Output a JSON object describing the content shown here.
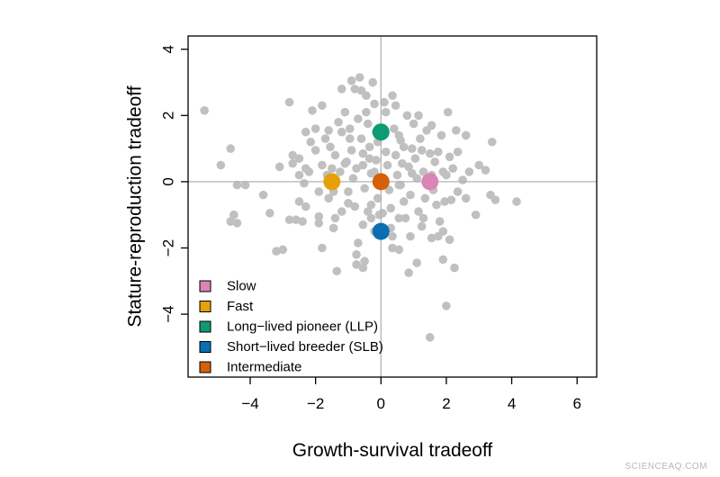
{
  "watermark": "SCIENCEAQ.COM",
  "chart_data": {
    "type": "scatter",
    "title": "",
    "xlabel": "Growth-survival tradeoff",
    "ylabel": "Stature-reproduction tradeoff",
    "xlim": [
      -5.9,
      6.6
    ],
    "ylim": [
      -5.9,
      4.4
    ],
    "xticks": [
      -4,
      -2,
      0,
      2,
      4,
      6
    ],
    "yticks": [
      -4,
      -2,
      0,
      2,
      4
    ],
    "xtick_labels": [
      "−4",
      "−2",
      "0",
      "2",
      "4",
      "6"
    ],
    "ytick_labels": [
      "−4",
      "−2",
      "0",
      "2",
      "4"
    ],
    "reference_lines": {
      "x": 0,
      "y": 0
    },
    "grid": false,
    "legend_position": "bottom-left",
    "background_points": {
      "color": "#c0c0c0",
      "points": [
        [
          -5.4,
          2.15
        ],
        [
          -4.6,
          1.0
        ],
        [
          -4.9,
          0.5
        ],
        [
          -4.4,
          -0.1
        ],
        [
          -4.15,
          -0.1
        ],
        [
          -4.5,
          -1.0
        ],
        [
          -4.6,
          -1.2
        ],
        [
          -4.4,
          -1.25
        ],
        [
          -3.6,
          -0.4
        ],
        [
          -3.4,
          -0.95
        ],
        [
          -3.2,
          -2.1
        ],
        [
          -3.0,
          -2.05
        ],
        [
          -2.8,
          -1.15
        ],
        [
          -2.6,
          -1.15
        ],
        [
          -2.7,
          0.8
        ],
        [
          -2.8,
          2.4
        ],
        [
          -2.5,
          0.7
        ],
        [
          -2.3,
          1.5
        ],
        [
          -2.3,
          0.4
        ],
        [
          -2.5,
          0.2
        ],
        [
          -2.35,
          -0.05
        ],
        [
          -2.5,
          -0.6
        ],
        [
          -2.4,
          -1.2
        ],
        [
          -2.2,
          0.3
        ],
        [
          -2.1,
          2.15
        ],
        [
          -2.0,
          1.6
        ],
        [
          -2.0,
          0.95
        ],
        [
          -1.8,
          0.5
        ],
        [
          -1.9,
          -0.3
        ],
        [
          -1.9,
          -1.05
        ],
        [
          -1.8,
          2.3
        ],
        [
          -1.7,
          1.3
        ],
        [
          -1.65,
          0.2
        ],
        [
          -1.6,
          -0.5
        ],
        [
          -1.8,
          -2.0
        ],
        [
          -1.55,
          1.05
        ],
        [
          -1.4,
          0.8
        ],
        [
          -1.5,
          0.4
        ],
        [
          -1.45,
          -0.3
        ],
        [
          -1.4,
          -1.1
        ],
        [
          -1.35,
          -2.7
        ],
        [
          -1.2,
          1.5
        ],
        [
          -1.25,
          0.3
        ],
        [
          -1.2,
          -0.9
        ],
        [
          -1.1,
          2.1
        ],
        [
          -1.05,
          0.6
        ],
        [
          -1.0,
          -0.3
        ],
        [
          -0.95,
          1.6
        ],
        [
          -0.9,
          0.95
        ],
        [
          -0.85,
          0.1
        ],
        [
          -0.8,
          -0.75
        ],
        [
          -0.75,
          -2.5
        ],
        [
          -0.8,
          2.8
        ],
        [
          -0.7,
          1.9
        ],
        [
          -0.6,
          1.3
        ],
        [
          -0.55,
          0.5
        ],
        [
          -0.5,
          -0.2
        ],
        [
          -0.55,
          -1.3
        ],
        [
          -0.45,
          2.6
        ],
        [
          -0.4,
          1.75
        ],
        [
          -0.35,
          0.7
        ],
        [
          -0.3,
          0.25
        ],
        [
          -0.3,
          -1.1
        ],
        [
          -0.2,
          2.35
        ],
        [
          -0.15,
          1.5
        ],
        [
          -0.2,
          0.3
        ],
        [
          -0.1,
          -0.5
        ],
        [
          -0.05,
          -1.0
        ],
        [
          -0.1,
          1.2
        ],
        [
          0.1,
          2.4
        ],
        [
          0.15,
          0.9
        ],
        [
          0.2,
          0.5
        ],
        [
          0.25,
          -0.25
        ],
        [
          0.3,
          -0.8
        ],
        [
          0.35,
          -2.0
        ],
        [
          0.4,
          1.6
        ],
        [
          0.45,
          0.8
        ],
        [
          0.5,
          0.2
        ],
        [
          0.55,
          -0.1
        ],
        [
          0.6,
          1.25
        ],
        [
          0.65,
          0.55
        ],
        [
          0.7,
          -0.6
        ],
        [
          0.75,
          -1.1
        ],
        [
          0.8,
          2.0
        ],
        [
          0.85,
          0.45
        ],
        [
          0.9,
          -0.4
        ],
        [
          0.95,
          1.0
        ],
        [
          1.0,
          1.75
        ],
        [
          1.05,
          0.7
        ],
        [
          1.1,
          0.1
        ],
        [
          1.15,
          -0.9
        ],
        [
          1.2,
          1.3
        ],
        [
          1.3,
          0.3
        ],
        [
          1.35,
          -0.5
        ],
        [
          1.4,
          1.55
        ],
        [
          1.5,
          0.85
        ],
        [
          1.55,
          0.2
        ],
        [
          1.6,
          -0.25
        ],
        [
          1.65,
          0.6
        ],
        [
          1.7,
          -0.7
        ],
        [
          1.75,
          0.9
        ],
        [
          1.8,
          -1.2
        ],
        [
          1.85,
          1.4
        ],
        [
          1.9,
          0.3
        ],
        [
          1.95,
          -0.6
        ],
        [
          2.0,
          0.2
        ],
        [
          2.05,
          2.1
        ],
        [
          2.1,
          0.75
        ],
        [
          2.15,
          -0.55
        ],
        [
          2.2,
          0.4
        ],
        [
          2.3,
          1.55
        ],
        [
          2.35,
          -0.3
        ],
        [
          2.5,
          0.05
        ],
        [
          2.6,
          -0.5
        ],
        [
          2.7,
          0.3
        ],
        [
          2.9,
          -1.0
        ],
        [
          3.0,
          0.5
        ],
        [
          3.2,
          0.35
        ],
        [
          3.4,
          1.2
        ],
        [
          3.5,
          -0.55
        ],
        [
          3.35,
          -0.4
        ],
        [
          4.15,
          -0.6
        ],
        [
          -0.7,
          -1.85
        ],
        [
          -0.75,
          -2.2
        ],
        [
          -0.5,
          -2.4
        ],
        [
          -0.55,
          -2.6
        ],
        [
          0.3,
          -1.4
        ],
        [
          0.35,
          -1.65
        ],
        [
          0.55,
          -1.1
        ],
        [
          0.9,
          -1.65
        ],
        [
          1.1,
          -2.45
        ],
        [
          0.85,
          -2.75
        ],
        [
          1.55,
          -1.7
        ],
        [
          1.75,
          -1.65
        ],
        [
          1.9,
          -1.5
        ],
        [
          2.1,
          -1.75
        ],
        [
          1.9,
          -2.35
        ],
        [
          2.25,
          -2.6
        ],
        [
          2.0,
          -3.75
        ],
        [
          1.5,
          -4.7
        ],
        [
          0.55,
          -2.05
        ],
        [
          -0.2,
          -1.5
        ],
        [
          -0.3,
          -0.7
        ],
        [
          0.6,
          -0.1
        ],
        [
          0.95,
          0.25
        ],
        [
          1.25,
          0.95
        ],
        [
          1.55,
          1.7
        ],
        [
          -0.95,
          1.3
        ],
        [
          -1.3,
          1.8
        ],
        [
          -1.6,
          1.55
        ],
        [
          -2.15,
          1.2
        ],
        [
          -2.7,
          0.55
        ],
        [
          -3.1,
          0.45
        ],
        [
          -1.1,
          0.55
        ],
        [
          -0.55,
          0.85
        ],
        [
          -0.15,
          0.65
        ],
        [
          0.7,
          1.05
        ],
        [
          1.15,
          2.0
        ],
        [
          0.35,
          2.6
        ],
        [
          -0.45,
          2.1
        ],
        [
          -0.6,
          2.75
        ],
        [
          -0.65,
          3.15
        ],
        [
          -0.9,
          3.05
        ],
        [
          -1.2,
          2.8
        ],
        [
          -0.35,
          1.05
        ],
        [
          0.55,
          1.4
        ],
        [
          2.35,
          0.9
        ],
        [
          2.6,
          1.4
        ],
        [
          -0.25,
          3.0
        ],
        [
          0.15,
          2.1
        ],
        [
          0.45,
          2.3
        ],
        [
          -0.75,
          0.4
        ],
        [
          -1.0,
          -0.65
        ],
        [
          1.3,
          -1.1
        ],
        [
          -0.4,
          -0.9
        ],
        [
          0.05,
          -0.95
        ],
        [
          -1.9,
          -1.25
        ],
        [
          -2.3,
          -0.75
        ],
        [
          -1.45,
          -1.4
        ],
        [
          1.25,
          -1.35
        ]
      ]
    },
    "series": [
      {
        "name": "Slow",
        "color": "#d985b6",
        "x": [
          1.5
        ],
        "y": [
          0.0
        ]
      },
      {
        "name": "Fast",
        "color": "#e6a10a",
        "x": [
          -1.5
        ],
        "y": [
          0.0
        ]
      },
      {
        "name": "Long−lived pioneer (LLP)",
        "color": "#0e9b73",
        "x": [
          0.0
        ],
        "y": [
          1.5
        ]
      },
      {
        "name": "Short−lived breeder (SLB)",
        "color": "#0a6fb0",
        "x": [
          0.0
        ],
        "y": [
          -1.5
        ]
      },
      {
        "name": "Intermediate",
        "color": "#d4600c",
        "x": [
          0.0
        ],
        "y": [
          0.0
        ]
      }
    ]
  }
}
